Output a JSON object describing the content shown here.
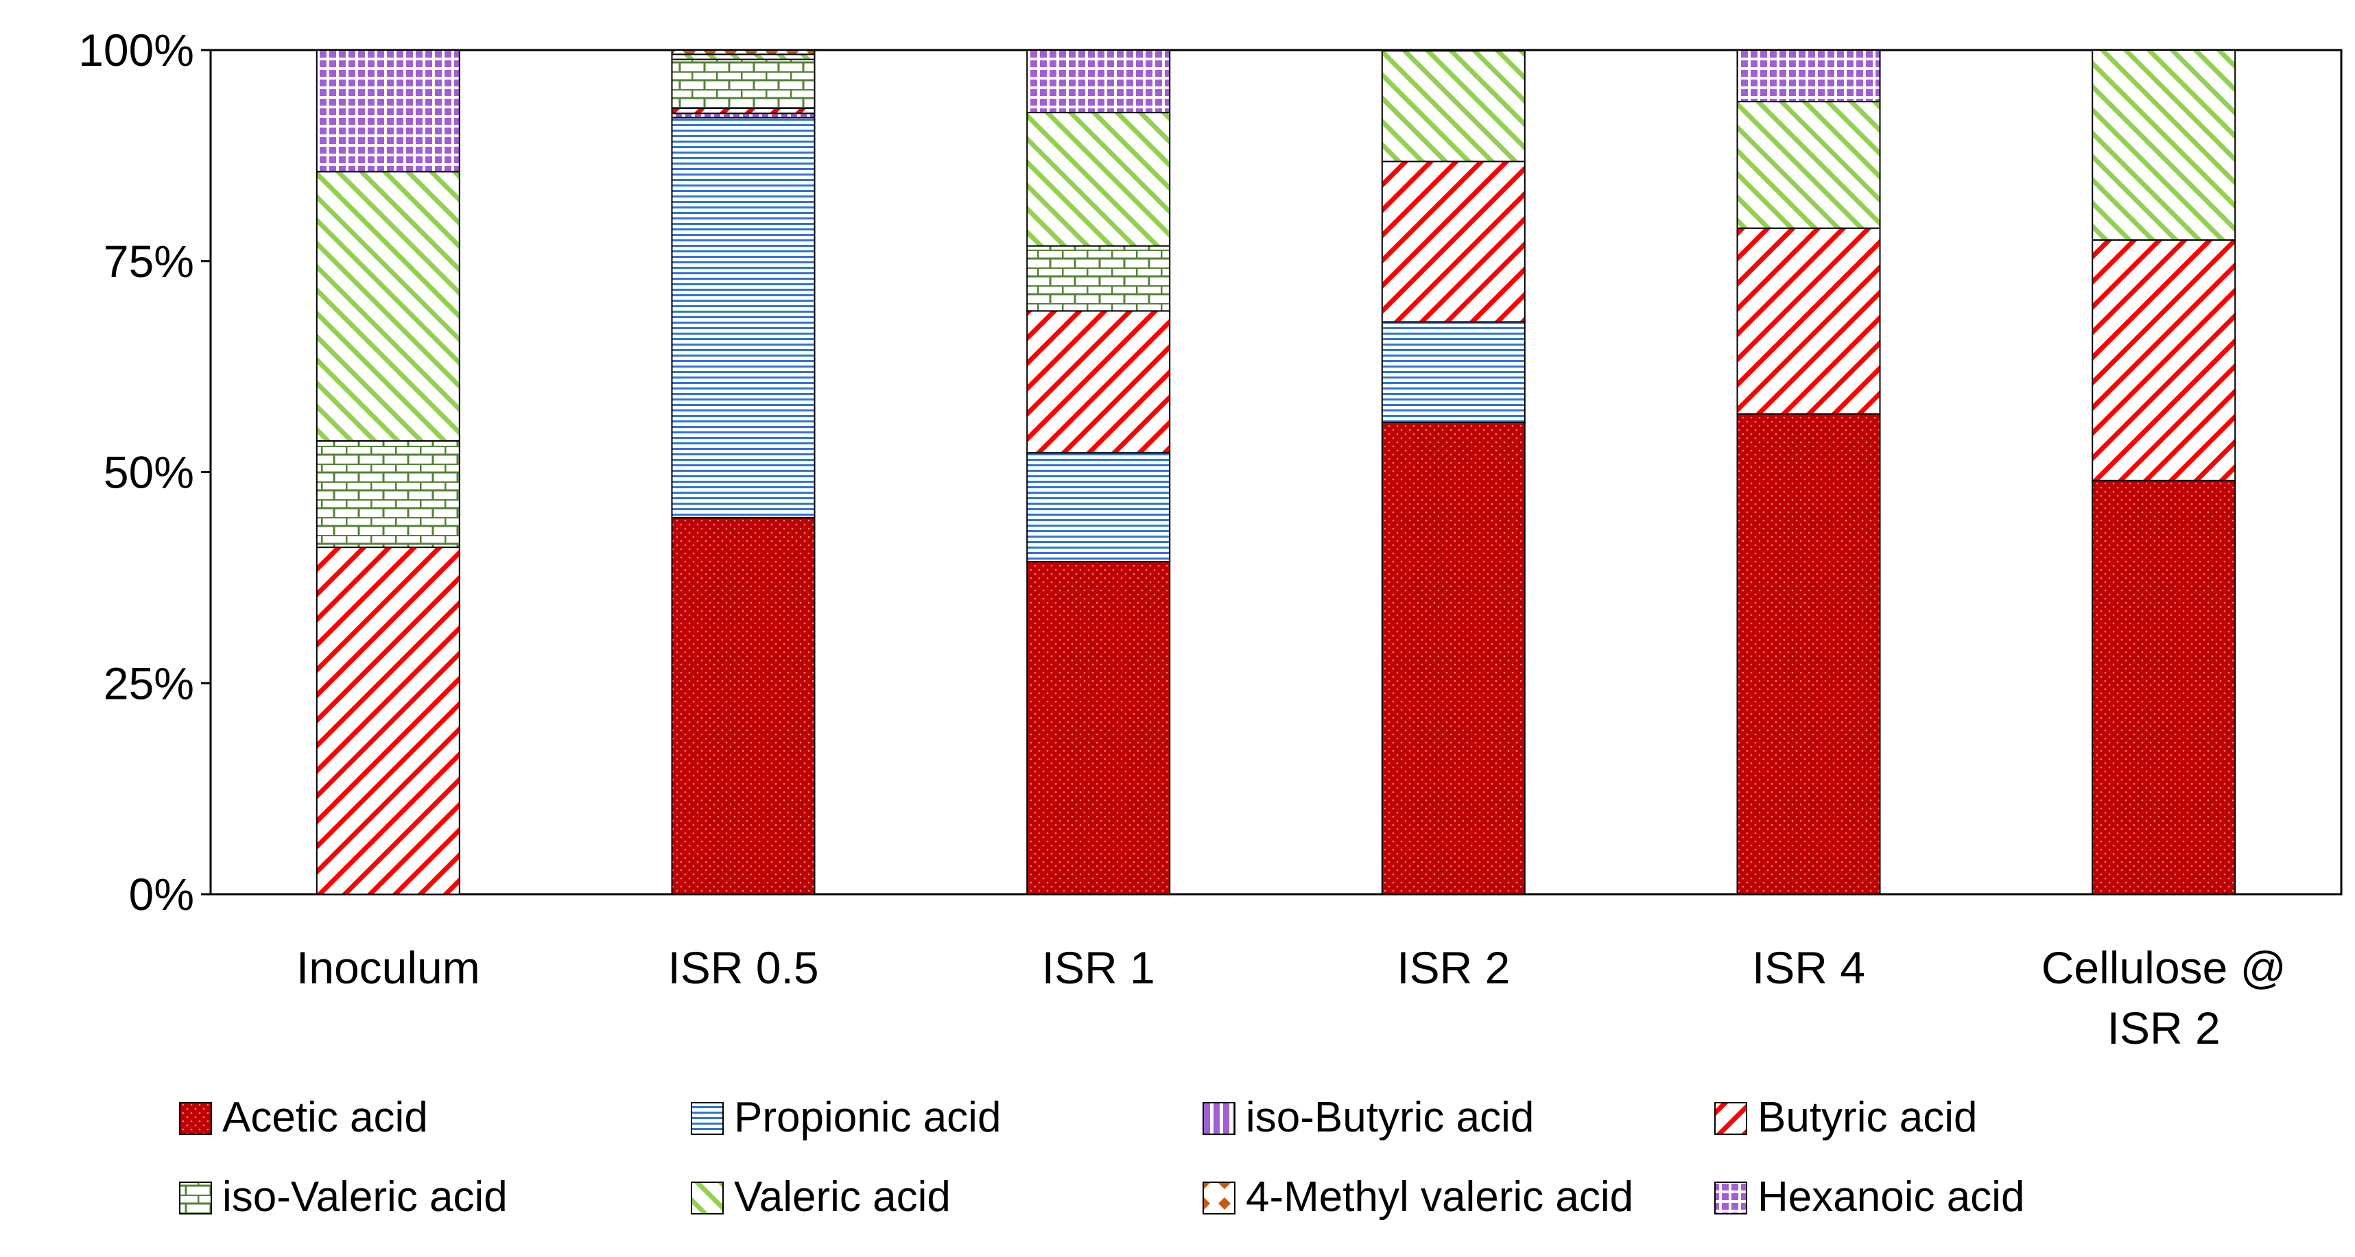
{
  "chart_data": {
    "type": "bar",
    "stacked": true,
    "normalized": true,
    "title": "",
    "xlabel": "",
    "ylabel": "",
    "ylim": [
      0,
      100
    ],
    "y_ticks": [
      "0%",
      "25%",
      "50%",
      "75%",
      "100%"
    ],
    "categories": [
      [
        "Inoculum"
      ],
      [
        "ISR 0.5"
      ],
      [
        "ISR 1"
      ],
      [
        "ISR 2"
      ],
      [
        "ISR 4"
      ],
      [
        "Cellulose @",
        "ISR 2"
      ]
    ],
    "series": [
      {
        "name": "Acetic acid",
        "color": "#c00000",
        "pattern": "dots",
        "values": [
          0,
          44.6,
          39.4,
          55.9,
          56.9,
          49.0
        ]
      },
      {
        "name": "Propionic acid",
        "color": "#2e75d6",
        "pattern": "horizontal",
        "values": [
          0,
          47.4,
          12.9,
          11.9,
          0,
          0
        ]
      },
      {
        "name": "iso-Butyric acid",
        "color": "#a15fd6",
        "pattern": "vertical",
        "values": [
          0,
          0.5,
          0,
          0,
          0,
          0
        ]
      },
      {
        "name": "Butyric acid",
        "color": "#ff0000",
        "pattern": "diagonal",
        "values": [
          41.1,
          0.6,
          16.8,
          19.0,
          22.0,
          28.5
        ]
      },
      {
        "name": "iso-Valeric acid",
        "color": "#548235",
        "pattern": "brick",
        "values": [
          12.6,
          5.8,
          7.7,
          0,
          0,
          0
        ]
      },
      {
        "name": "Valeric acid",
        "color": "#92d050",
        "pattern": "diagonal2",
        "values": [
          31.9,
          0.6,
          15.8,
          13.1,
          15.0,
          22.5
        ]
      },
      {
        "name": "4-Methyl valeric acid",
        "color": "#c55a11",
        "pattern": "diamond",
        "values": [
          0,
          0.5,
          0,
          0,
          0,
          0
        ]
      },
      {
        "name": "Hexanoic acid",
        "color": "#a15fd6",
        "pattern": "grid",
        "values": [
          14.4,
          0,
          7.4,
          0,
          6.1,
          0
        ]
      }
    ],
    "legend_position": "bottom",
    "grid": false
  }
}
